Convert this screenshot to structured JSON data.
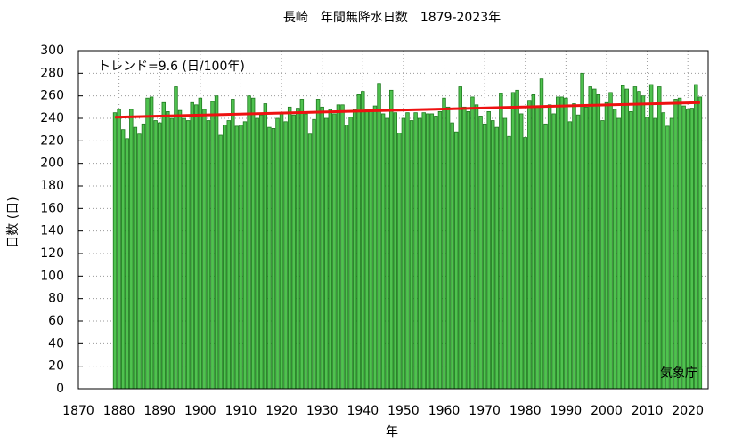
{
  "chart_data": {
    "type": "bar",
    "title": "長崎　年間無降水日数　1879-2023年",
    "xlabel": "年",
    "ylabel": "日数 (日)",
    "annotation": "トレンド=9.6 (日/100年)",
    "source": "気象庁",
    "x": [
      1879,
      1880,
      1881,
      1882,
      1883,
      1884,
      1885,
      1886,
      1887,
      1888,
      1889,
      1890,
      1891,
      1892,
      1893,
      1894,
      1895,
      1896,
      1897,
      1898,
      1899,
      1900,
      1901,
      1902,
      1903,
      1904,
      1905,
      1906,
      1907,
      1908,
      1909,
      1910,
      1911,
      1912,
      1913,
      1914,
      1915,
      1916,
      1917,
      1918,
      1919,
      1920,
      1921,
      1922,
      1923,
      1924,
      1925,
      1926,
      1927,
      1928,
      1929,
      1930,
      1931,
      1932,
      1933,
      1934,
      1935,
      1936,
      1937,
      1938,
      1939,
      1940,
      1941,
      1942,
      1943,
      1944,
      1945,
      1946,
      1947,
      1948,
      1949,
      1950,
      1951,
      1952,
      1953,
      1954,
      1955,
      1956,
      1957,
      1958,
      1959,
      1960,
      1961,
      1962,
      1963,
      1964,
      1965,
      1966,
      1967,
      1968,
      1969,
      1970,
      1971,
      1972,
      1973,
      1974,
      1975,
      1976,
      1977,
      1978,
      1979,
      1980,
      1981,
      1982,
      1983,
      1984,
      1985,
      1986,
      1987,
      1988,
      1989,
      1990,
      1991,
      1992,
      1993,
      1994,
      1995,
      1996,
      1997,
      1998,
      1999,
      2000,
      2001,
      2002,
      2003,
      2004,
      2005,
      2006,
      2007,
      2008,
      2009,
      2010,
      2011,
      2012,
      2013,
      2014,
      2015,
      2016,
      2017,
      2018,
      2019,
      2020,
      2021,
      2022,
      2023
    ],
    "values": [
      245,
      248,
      230,
      222,
      248,
      232,
      226,
      235,
      258,
      259,
      238,
      236,
      254,
      246,
      240,
      268,
      247,
      240,
      238,
      254,
      252,
      258,
      248,
      238,
      255,
      260,
      225,
      234,
      238,
      257,
      233,
      234,
      237,
      260,
      258,
      240,
      243,
      253,
      232,
      231,
      240,
      244,
      237,
      250,
      243,
      249,
      257,
      244,
      226,
      239,
      257,
      250,
      240,
      248,
      244,
      252,
      252,
      234,
      241,
      248,
      261,
      264,
      248,
      248,
      251,
      271,
      244,
      240,
      265,
      245,
      227,
      240,
      245,
      238,
      245,
      240,
      245,
      244,
      244,
      242,
      246,
      258,
      250,
      236,
      228,
      268,
      250,
      246,
      259,
      252,
      242,
      235,
      246,
      238,
      232,
      262,
      240,
      224,
      263,
      265,
      244,
      223,
      256,
      261,
      250,
      275,
      235,
      252,
      244,
      259,
      259,
      258,
      237,
      253,
      243,
      280,
      250,
      268,
      266,
      261,
      238,
      254,
      263,
      248,
      240,
      269,
      266,
      246,
      268,
      264,
      260,
      241,
      270,
      240,
      268,
      245,
      233,
      240,
      257,
      258,
      251,
      248,
      249,
      270,
      259
    ],
    "color": "#4fc24f",
    "edge_color": "#1e7a1e",
    "trend": {
      "x": [
        1879,
        2023
      ],
      "values": [
        241,
        254
      ],
      "color": "#ee1111"
    },
    "xlim": [
      1870,
      2025
    ],
    "ylim": [
      0,
      300
    ],
    "xticks": [
      1870,
      1880,
      1890,
      1900,
      1910,
      1920,
      1930,
      1940,
      1950,
      1960,
      1970,
      1980,
      1990,
      2000,
      2010,
      2020
    ],
    "yticks": [
      0,
      20,
      40,
      60,
      80,
      100,
      120,
      140,
      160,
      180,
      200,
      220,
      240,
      260,
      280,
      300
    ],
    "grid": true
  }
}
